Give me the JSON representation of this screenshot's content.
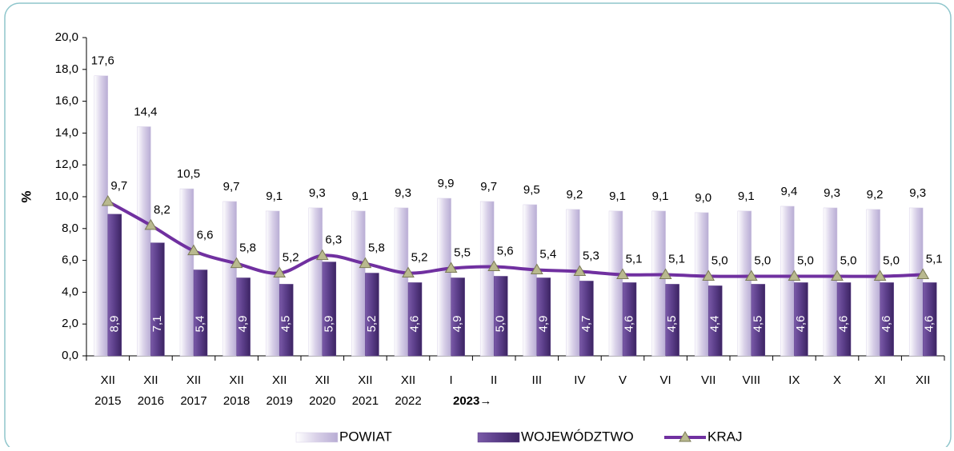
{
  "chart_data": {
    "type": "bar_line",
    "ylabel": "%",
    "categories": [
      [
        "XII",
        "2015"
      ],
      [
        "XII",
        "2016"
      ],
      [
        "XII",
        "2017"
      ],
      [
        "XII",
        "2018"
      ],
      [
        "XII",
        "2019"
      ],
      [
        "XII",
        "2020"
      ],
      [
        "XII",
        "2021"
      ],
      [
        "XII",
        "2022"
      ],
      [
        "I"
      ],
      [
        "II"
      ],
      [
        "III"
      ],
      [
        "IV"
      ],
      [
        "V"
      ],
      [
        "VI"
      ],
      [
        "VII"
      ],
      [
        "VIII"
      ],
      [
        "IX"
      ],
      [
        "X"
      ],
      [
        "XI"
      ],
      [
        "XII"
      ]
    ],
    "x_annotation": "2023→",
    "ylim": [
      0,
      20
    ],
    "yticks": [
      {
        "value": 0,
        "label": "0,0"
      },
      {
        "value": 2,
        "label": "2,0"
      },
      {
        "value": 4,
        "label": "4,0"
      },
      {
        "value": 6,
        "label": "6,0"
      },
      {
        "value": 8,
        "label": "8,0"
      },
      {
        "value": 10,
        "label": "10,0"
      },
      {
        "value": 12,
        "label": "12,0"
      },
      {
        "value": 14,
        "label": "14,0"
      },
      {
        "value": 16,
        "label": "16,0"
      },
      {
        "value": 18,
        "label": "18,0"
      },
      {
        "value": 20,
        "label": "20,0"
      }
    ],
    "legend": "bottom",
    "series": [
      {
        "name": "POWIAT",
        "kind": "bar",
        "color": "#d8d0e8",
        "values": [
          17.6,
          14.4,
          10.5,
          9.7,
          9.1,
          9.3,
          9.1,
          9.3,
          9.9,
          9.7,
          9.5,
          9.2,
          9.1,
          9.1,
          9.0,
          9.1,
          9.4,
          9.3,
          9.2,
          9.3
        ],
        "value_labels": [
          "17,6",
          "14,4",
          "10,5",
          "9,7",
          "9,1",
          "9,3",
          "9,1",
          "9,3",
          "9,9",
          "9,7",
          "9,5",
          "9,2",
          "9,1",
          "9,1",
          "9,0",
          "9,1",
          "9,4",
          "9,3",
          "9,2",
          "9,3"
        ]
      },
      {
        "name": "WOJEWÓDZTWO",
        "kind": "bar",
        "color": "#5a3d88",
        "values": [
          8.9,
          7.1,
          5.4,
          4.9,
          4.5,
          5.9,
          5.2,
          4.6,
          4.9,
          5.0,
          4.9,
          4.7,
          4.6,
          4.5,
          4.4,
          4.5,
          4.6,
          4.6,
          4.6,
          4.6
        ],
        "value_labels": [
          "8,9",
          "7,1",
          "5,4",
          "4,9",
          "4,5",
          "5,9",
          "5,2",
          "4,6",
          "4,9",
          "5,0",
          "4,9",
          "4,7",
          "4,6",
          "4,5",
          "4,4",
          "4,5",
          "4,6",
          "4,6",
          "4,6",
          "4,6"
        ]
      },
      {
        "name": "KRAJ",
        "kind": "line",
        "color": "#7030a0",
        "marker_color": "#b9b98f",
        "values": [
          9.7,
          8.2,
          6.6,
          5.8,
          5.2,
          6.3,
          5.8,
          5.2,
          5.5,
          5.6,
          5.4,
          5.3,
          5.1,
          5.1,
          5.0,
          5.0,
          5.0,
          5.0,
          5.0,
          5.1
        ],
        "value_labels": [
          "9,7",
          "8,2",
          "6,6",
          "5,8",
          "5,2",
          "6,3",
          "5,8",
          "5,2",
          "5,5",
          "5,6",
          "5,4",
          "5,3",
          "5,1",
          "5,1",
          "5,0",
          "5,0",
          "5,0",
          "5,0",
          "5,0",
          "5,1"
        ]
      }
    ]
  }
}
